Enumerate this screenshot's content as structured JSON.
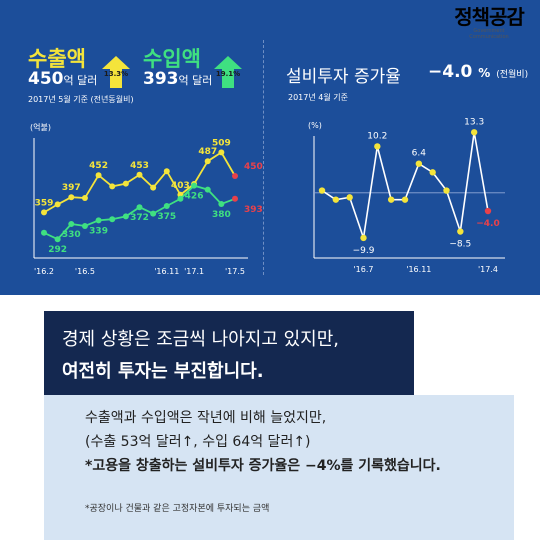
{
  "logo": {
    "name": "정책공감",
    "tagline": "Government Communication"
  },
  "left_panel": {
    "export_title": "수출액",
    "export_value": "450",
    "export_unit": "억 달러",
    "export_growth": "13.3%",
    "import_title": "수입액",
    "import_value": "393",
    "import_unit": "억 달러",
    "import_growth": "19.1%",
    "basis": "2017년 5월 기준 (전년동월비)"
  },
  "right_panel": {
    "title": "설비투자  증가율",
    "value": "−4.0",
    "value_unit": "%",
    "value_note": "(전월비)",
    "basis": "2017년 4월 기준"
  },
  "chart_data": [
    {
      "type": "line",
      "ylabel": "(억불)",
      "x_ticks": [
        "'16.2",
        "'16.5",
        "'16.11",
        "'17.1",
        "'17.5"
      ],
      "series": [
        {
          "name": "수출액",
          "color": "#f4e43b",
          "values": [
            359,
            379,
            397,
            395,
            452,
            424,
            431,
            453,
            421,
            462,
            403,
            430,
            487,
            509,
            450
          ],
          "labels": [
            "359",
            null,
            "397",
            null,
            "452",
            null,
            null,
            "453",
            null,
            null,
            "403",
            null,
            "487",
            "509",
            "450"
          ]
        },
        {
          "name": "수입액",
          "color": "#3fe081",
          "values": [
            308,
            292,
            330,
            325,
            339,
            342,
            349,
            372,
            356,
            375,
            393,
            426,
            416,
            380,
            393
          ],
          "labels": [
            null,
            "292",
            "330",
            null,
            "339",
            null,
            null,
            "372",
            null,
            "375",
            null,
            "426",
            null,
            "380",
            "393"
          ]
        }
      ],
      "last_point_color": "#e8414a",
      "ylim": [
        260,
        540
      ]
    },
    {
      "type": "line",
      "ylabel": "(%)",
      "x_ticks": [
        "'16.7",
        "'16.11",
        "'17.4"
      ],
      "series": [
        {
          "name": "설비투자 증가율",
          "color": "#ffffff",
          "values": [
            0.5,
            -1.5,
            -1.0,
            -9.9,
            10.2,
            -1.5,
            -1.5,
            6.4,
            4.5,
            0.5,
            -8.5,
            13.3,
            -4.0
          ],
          "labels": [
            null,
            null,
            null,
            "−9.9",
            "10.2",
            null,
            null,
            "6.4",
            null,
            null,
            "−8.5",
            "13.3",
            "−4.0"
          ]
        }
      ],
      "point_color": "#f4e43b",
      "last_point_color": "#e8414a",
      "ylim": [
        -13,
        16
      ]
    }
  ],
  "banner": {
    "line1": "경제 상황은 조금씩 나아지고 있지만,",
    "line2": "여전히 투자는 부진합니다."
  },
  "body": {
    "line1": "수출액과 수입액은 작년에 비해 늘었지만,",
    "line2": "(수출 53억 달러↑, 수입 64억 달러↑)",
    "line3": "*고용을 창출하는 설비투자 증가율은 −4%를 기록했습니다.",
    "footnote": "*공장이나 건물과 같은 고정자본에 투자되는 금액"
  }
}
